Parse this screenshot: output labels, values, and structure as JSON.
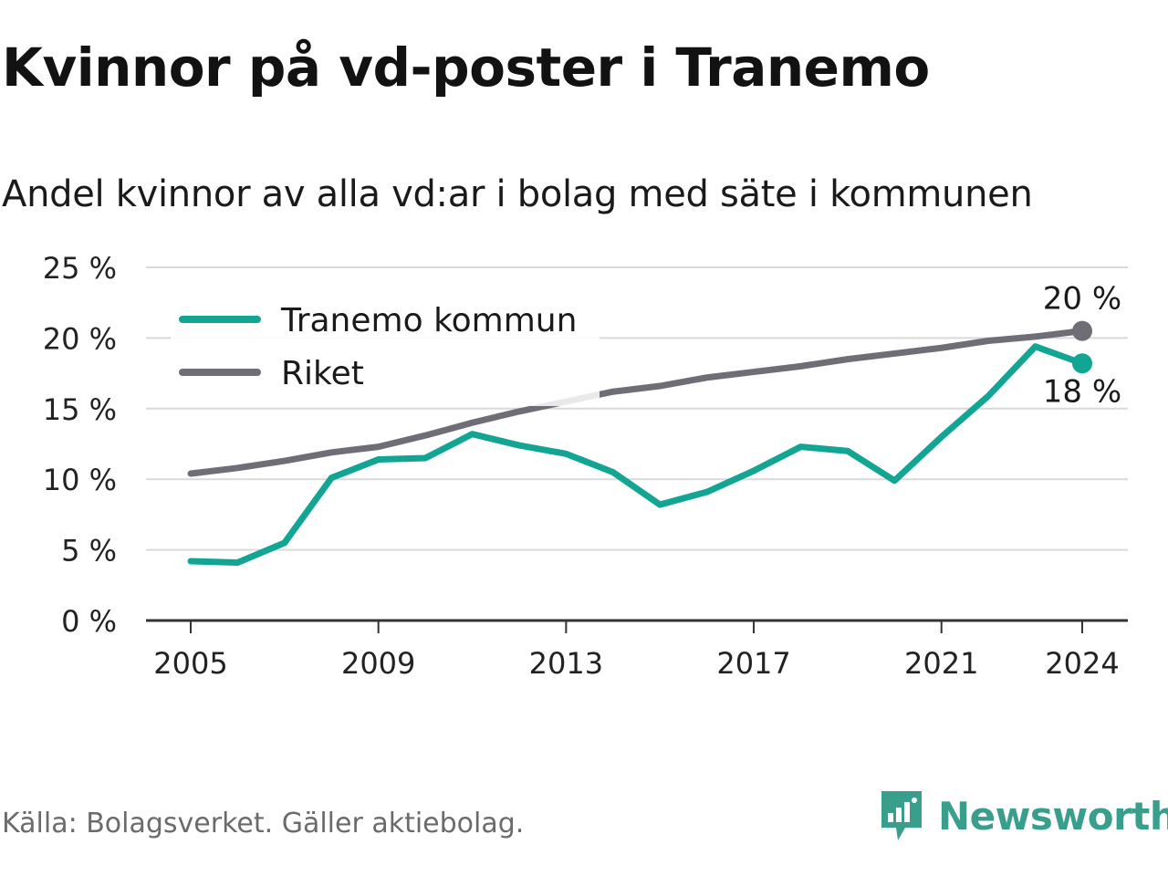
{
  "header": {
    "title": "Kvinnor på vd-poster i Tranemo",
    "subtitle": "Andel kvinnor av alla vd:ar i bolag med säte i kommunen"
  },
  "footer": {
    "source": "Källa: Bolagsverket. Gäller aktiebolag.",
    "brand": "Newsworthy"
  },
  "colors": {
    "tranemo": "#12a594",
    "riket": "#6f6e77",
    "grid": "#d9d9d9",
    "axis": "#333333",
    "brand": "#3a9e8c"
  },
  "chart_data": {
    "type": "line",
    "title": "Kvinnor på vd-poster i Tranemo",
    "subtitle": "Andel kvinnor av alla vd:ar i bolag med säte i kommunen",
    "x": [
      2005,
      2006,
      2007,
      2008,
      2009,
      2010,
      2011,
      2012,
      2013,
      2014,
      2015,
      2016,
      2017,
      2018,
      2019,
      2020,
      2021,
      2022,
      2023,
      2024
    ],
    "x_ticks": [
      "2005",
      "2009",
      "2013",
      "2017",
      "2021",
      "2024"
    ],
    "x_tick_values": [
      2005,
      2009,
      2013,
      2017,
      2021,
      2024
    ],
    "y_ticks": [
      "0 %",
      "5 %",
      "10 %",
      "15 %",
      "20 %",
      "25 %"
    ],
    "y_tick_values": [
      0,
      5,
      10,
      15,
      20,
      25
    ],
    "ylim": [
      0,
      25
    ],
    "xlim": [
      2004,
      2025
    ],
    "grid": true,
    "legend": "top-left",
    "series": [
      {
        "name": "Tranemo kommun",
        "color": "#12a594",
        "values": [
          4.2,
          4.1,
          5.5,
          10.1,
          11.4,
          11.5,
          13.2,
          12.4,
          11.8,
          10.5,
          8.2,
          9.1,
          10.6,
          12.3,
          12.0,
          9.9,
          13.0,
          15.9,
          19.4,
          18.2
        ],
        "end_label": "18 %"
      },
      {
        "name": "Riket",
        "color": "#6f6e77",
        "values": [
          10.4,
          10.8,
          11.3,
          11.9,
          12.3,
          13.1,
          14.0,
          14.8,
          15.5,
          16.2,
          16.6,
          17.2,
          17.6,
          18.0,
          18.5,
          18.9,
          19.3,
          19.8,
          20.1,
          20.5
        ],
        "end_label": "20 %"
      }
    ]
  }
}
